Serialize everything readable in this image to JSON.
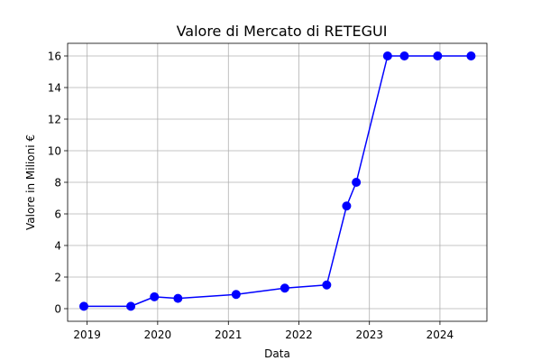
{
  "chart_data": {
    "type": "line",
    "title": "Valore di Mercato di RETEGUI",
    "xlabel": "Data",
    "ylabel": "Valore in Milioni €",
    "x_axis_type": "date",
    "xlim": [
      "2018-09-22",
      "2024-08-31"
    ],
    "ylim": [
      -0.8,
      16.8
    ],
    "x_ticks": [
      {
        "date": "2019-01-01",
        "label": "2019"
      },
      {
        "date": "2020-01-01",
        "label": "2020"
      },
      {
        "date": "2021-01-01",
        "label": "2021"
      },
      {
        "date": "2022-01-01",
        "label": "2022"
      },
      {
        "date": "2023-01-01",
        "label": "2023"
      },
      {
        "date": "2024-01-01",
        "label": "2024"
      }
    ],
    "y_ticks": [
      0,
      2,
      4,
      6,
      8,
      10,
      12,
      14,
      16
    ],
    "grid": true,
    "marker": "circle",
    "series": [
      {
        "color": "#0000ff",
        "x": [
          "2018-12-15",
          "2019-08-15",
          "2019-12-15",
          "2020-04-15",
          "2021-02-10",
          "2021-10-20",
          "2022-05-25",
          "2022-09-05",
          "2022-10-25",
          "2023-04-05",
          "2023-07-01",
          "2023-12-20",
          "2024-06-10"
        ],
        "y": [
          0.15,
          0.15,
          0.75,
          0.65,
          0.9,
          1.3,
          1.5,
          6.5,
          8.0,
          16.0,
          16.0,
          16.0,
          16.0
        ]
      }
    ]
  }
}
